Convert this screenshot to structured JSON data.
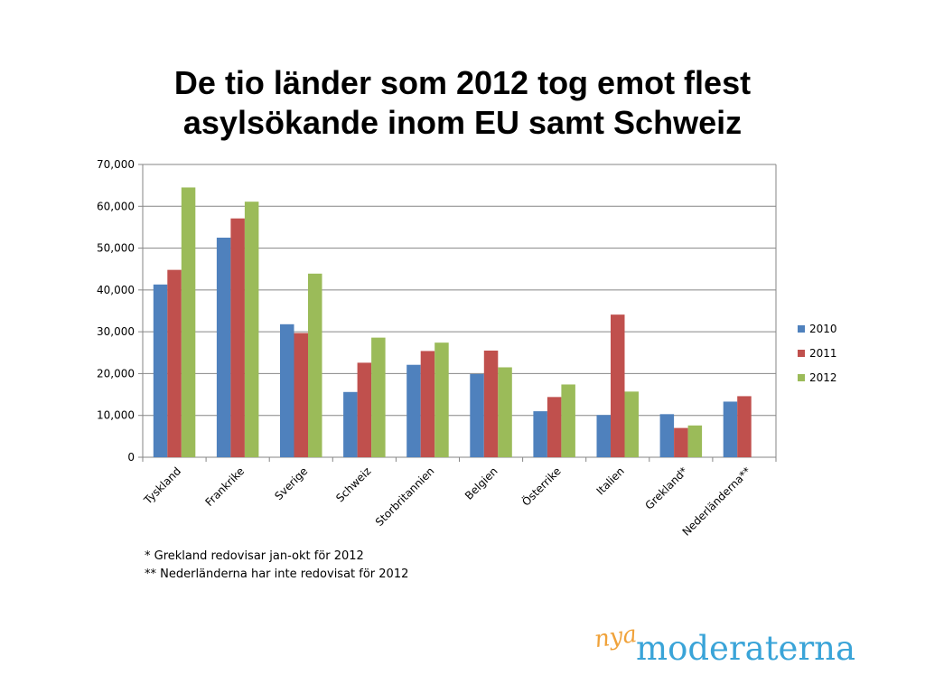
{
  "title_lines": [
    "De tio länder som 2012 tog emot flest",
    "asylsökande inom EU samt Schweiz"
  ],
  "footnotes": [
    "* Grekland redovisar jan-okt för 2012",
    "** Nederländerna har inte redovisat för 2012"
  ],
  "logo": {
    "small": "nya",
    "main": "moderaterna"
  },
  "chart_data": {
    "type": "bar",
    "categories": [
      "Tyskland",
      "Frankrike",
      "Sverige",
      "Schweiz",
      "Storbritannien",
      "Belgien",
      "Österrike",
      "Italien",
      "Grekland*",
      "Nederländerna**"
    ],
    "series": [
      {
        "name": "2010",
        "color": "#4f81bd",
        "values": [
          41300,
          52500,
          31800,
          15600,
          22100,
          19900,
          11000,
          10100,
          10300,
          13300
        ]
      },
      {
        "name": "2011",
        "color": "#c0504d",
        "values": [
          44800,
          57100,
          29700,
          22600,
          25400,
          25500,
          14400,
          34100,
          7000,
          14600
        ]
      },
      {
        "name": "2012",
        "color": "#9bbb59",
        "values": [
          64500,
          61100,
          43900,
          28600,
          27400,
          21500,
          17400,
          15700,
          7600,
          null
        ]
      }
    ],
    "yticks": [
      "0",
      "10,000",
      "20,000",
      "30,000",
      "40,000",
      "50,000",
      "60,000",
      "70,000"
    ],
    "ylim": [
      0,
      70000
    ],
    "grid": true,
    "legend_position": "right"
  }
}
